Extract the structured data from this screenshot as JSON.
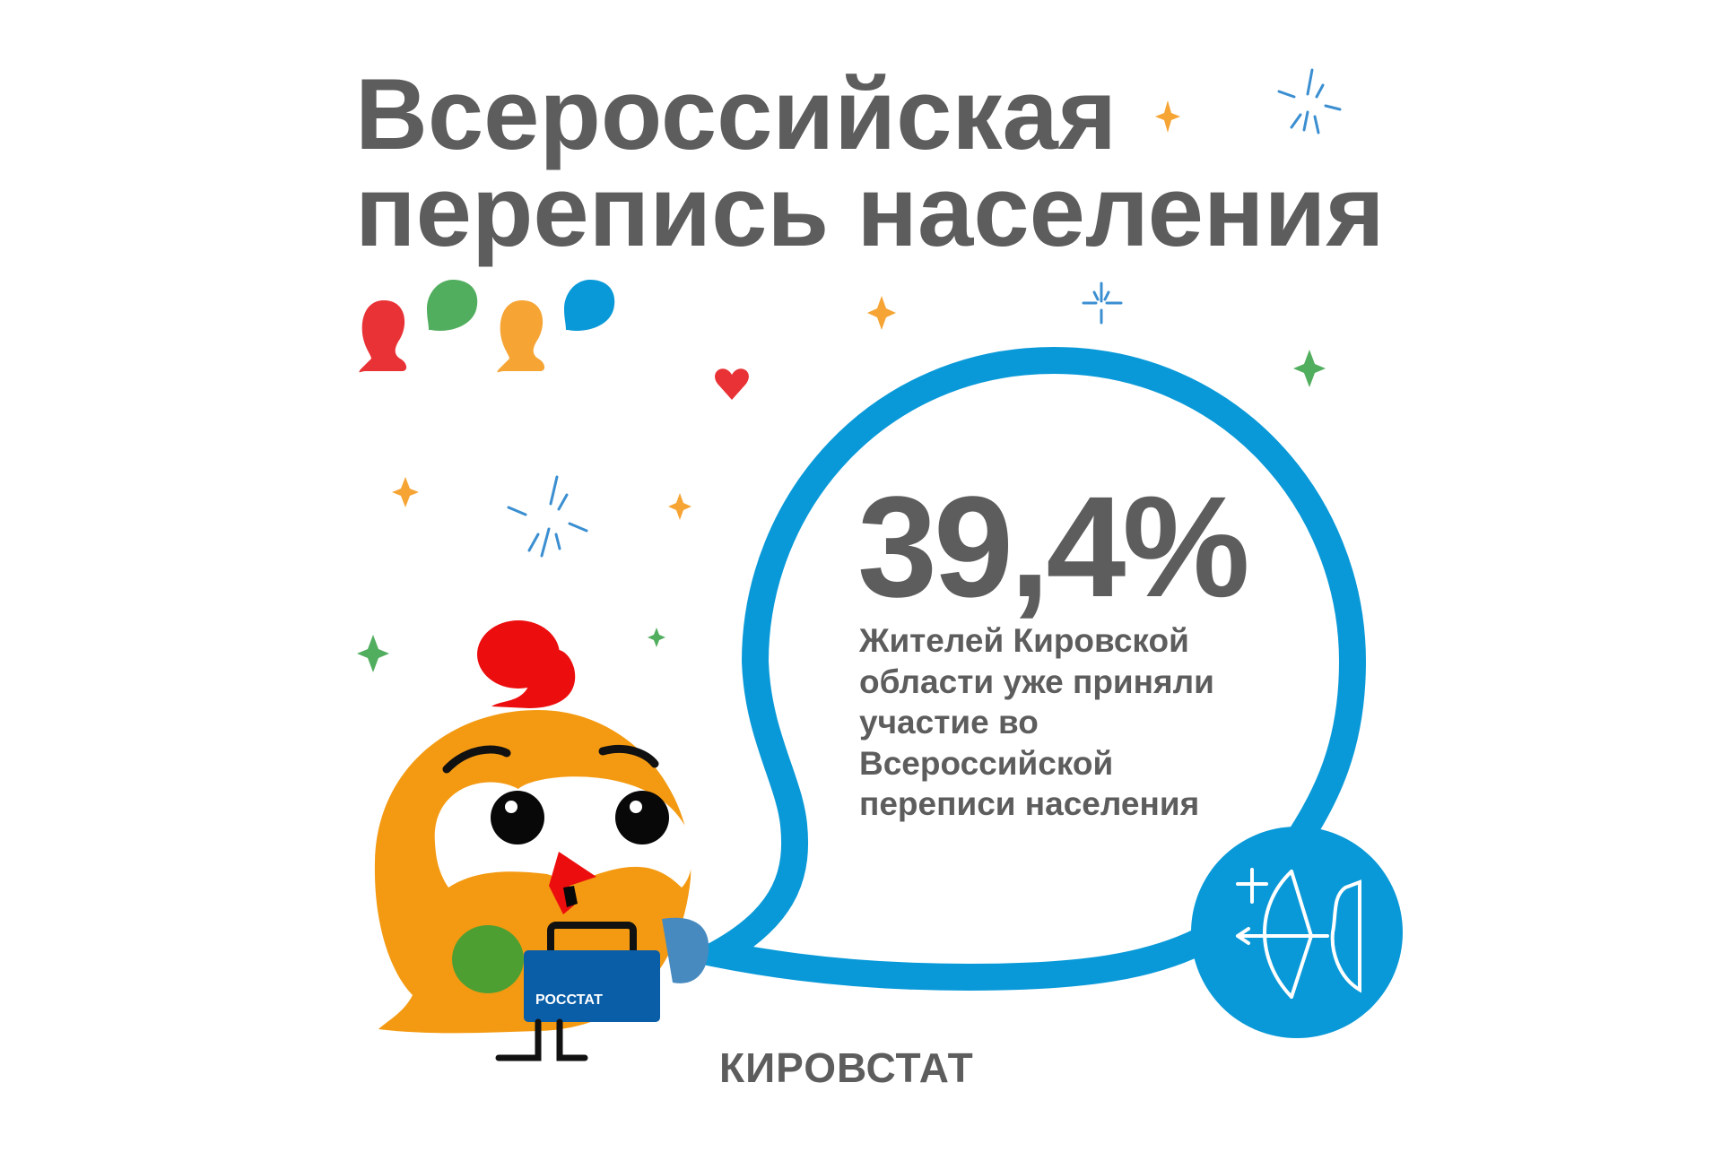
{
  "title": {
    "line1": "Всероссийская",
    "line2": "перепись населения"
  },
  "stat": {
    "percent": "39,4%",
    "description_lines": [
      "Жителей Кировской",
      "области уже приняли",
      "участие во",
      "Всероссийской",
      "переписи населения"
    ]
  },
  "mascot": {
    "briefcase_label": "РОССТАТ"
  },
  "footer": {
    "organization": "КИРОВСТАТ"
  },
  "colors": {
    "text": "#5d5d5d",
    "blue": "#0a99d8",
    "orange": "#f49a12",
    "red": "#e83236",
    "green": "#52ae5f",
    "dark_blue": "#0a5ea8"
  }
}
